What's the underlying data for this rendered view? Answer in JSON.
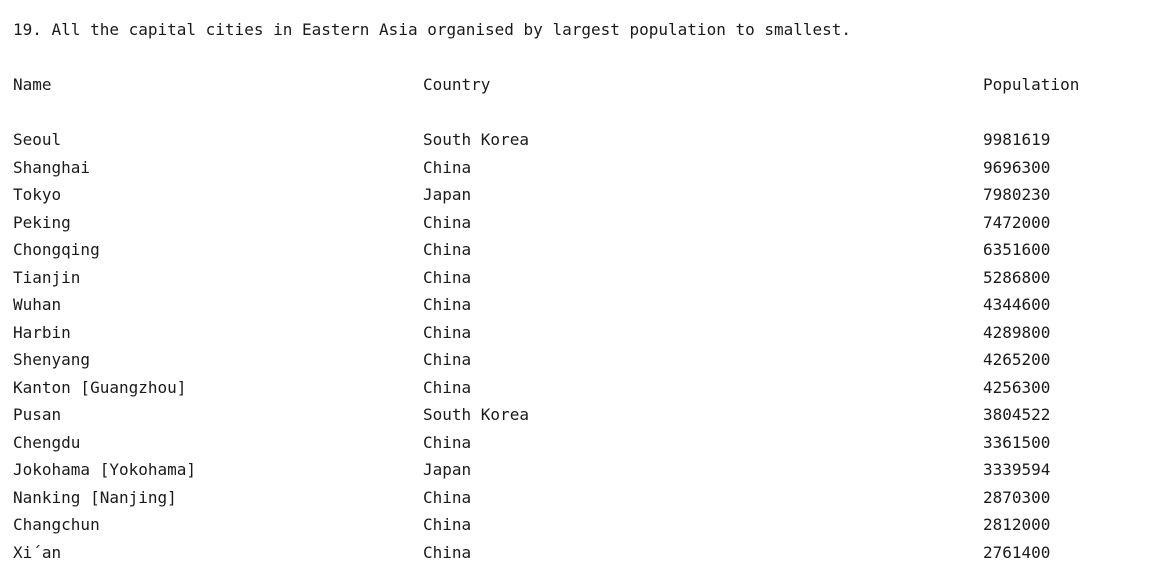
{
  "title": "19. All the capital cities in Eastern Asia organised by largest population to smallest.",
  "headers": {
    "name": "Name",
    "country": "Country",
    "population": "Population"
  },
  "rows": [
    {
      "name": "Seoul",
      "country": "South Korea",
      "population": "9981619"
    },
    {
      "name": "Shanghai",
      "country": "China",
      "population": "9696300"
    },
    {
      "name": "Tokyo",
      "country": "Japan",
      "population": "7980230"
    },
    {
      "name": "Peking",
      "country": "China",
      "population": "7472000"
    },
    {
      "name": "Chongqing",
      "country": "China",
      "population": "6351600"
    },
    {
      "name": "Tianjin",
      "country": "China",
      "population": "5286800"
    },
    {
      "name": "Wuhan",
      "country": "China",
      "population": "4344600"
    },
    {
      "name": "Harbin",
      "country": "China",
      "population": "4289800"
    },
    {
      "name": "Shenyang",
      "country": "China",
      "population": "4265200"
    },
    {
      "name": "Kanton [Guangzhou]",
      "country": "China",
      "population": "4256300"
    },
    {
      "name": "Pusan",
      "country": "South Korea",
      "population": "3804522"
    },
    {
      "name": "Chengdu",
      "country": "China",
      "population": "3361500"
    },
    {
      "name": "Jokohama [Yokohama]",
      "country": "Japan",
      "population": "3339594"
    },
    {
      "name": "Nanking [Nanjing]",
      "country": "China",
      "population": "2870300"
    },
    {
      "name": "Changchun",
      "country": "China",
      "population": "2812000"
    },
    {
      "name": "Xi´an",
      "country": "China",
      "population": "2761400"
    }
  ]
}
